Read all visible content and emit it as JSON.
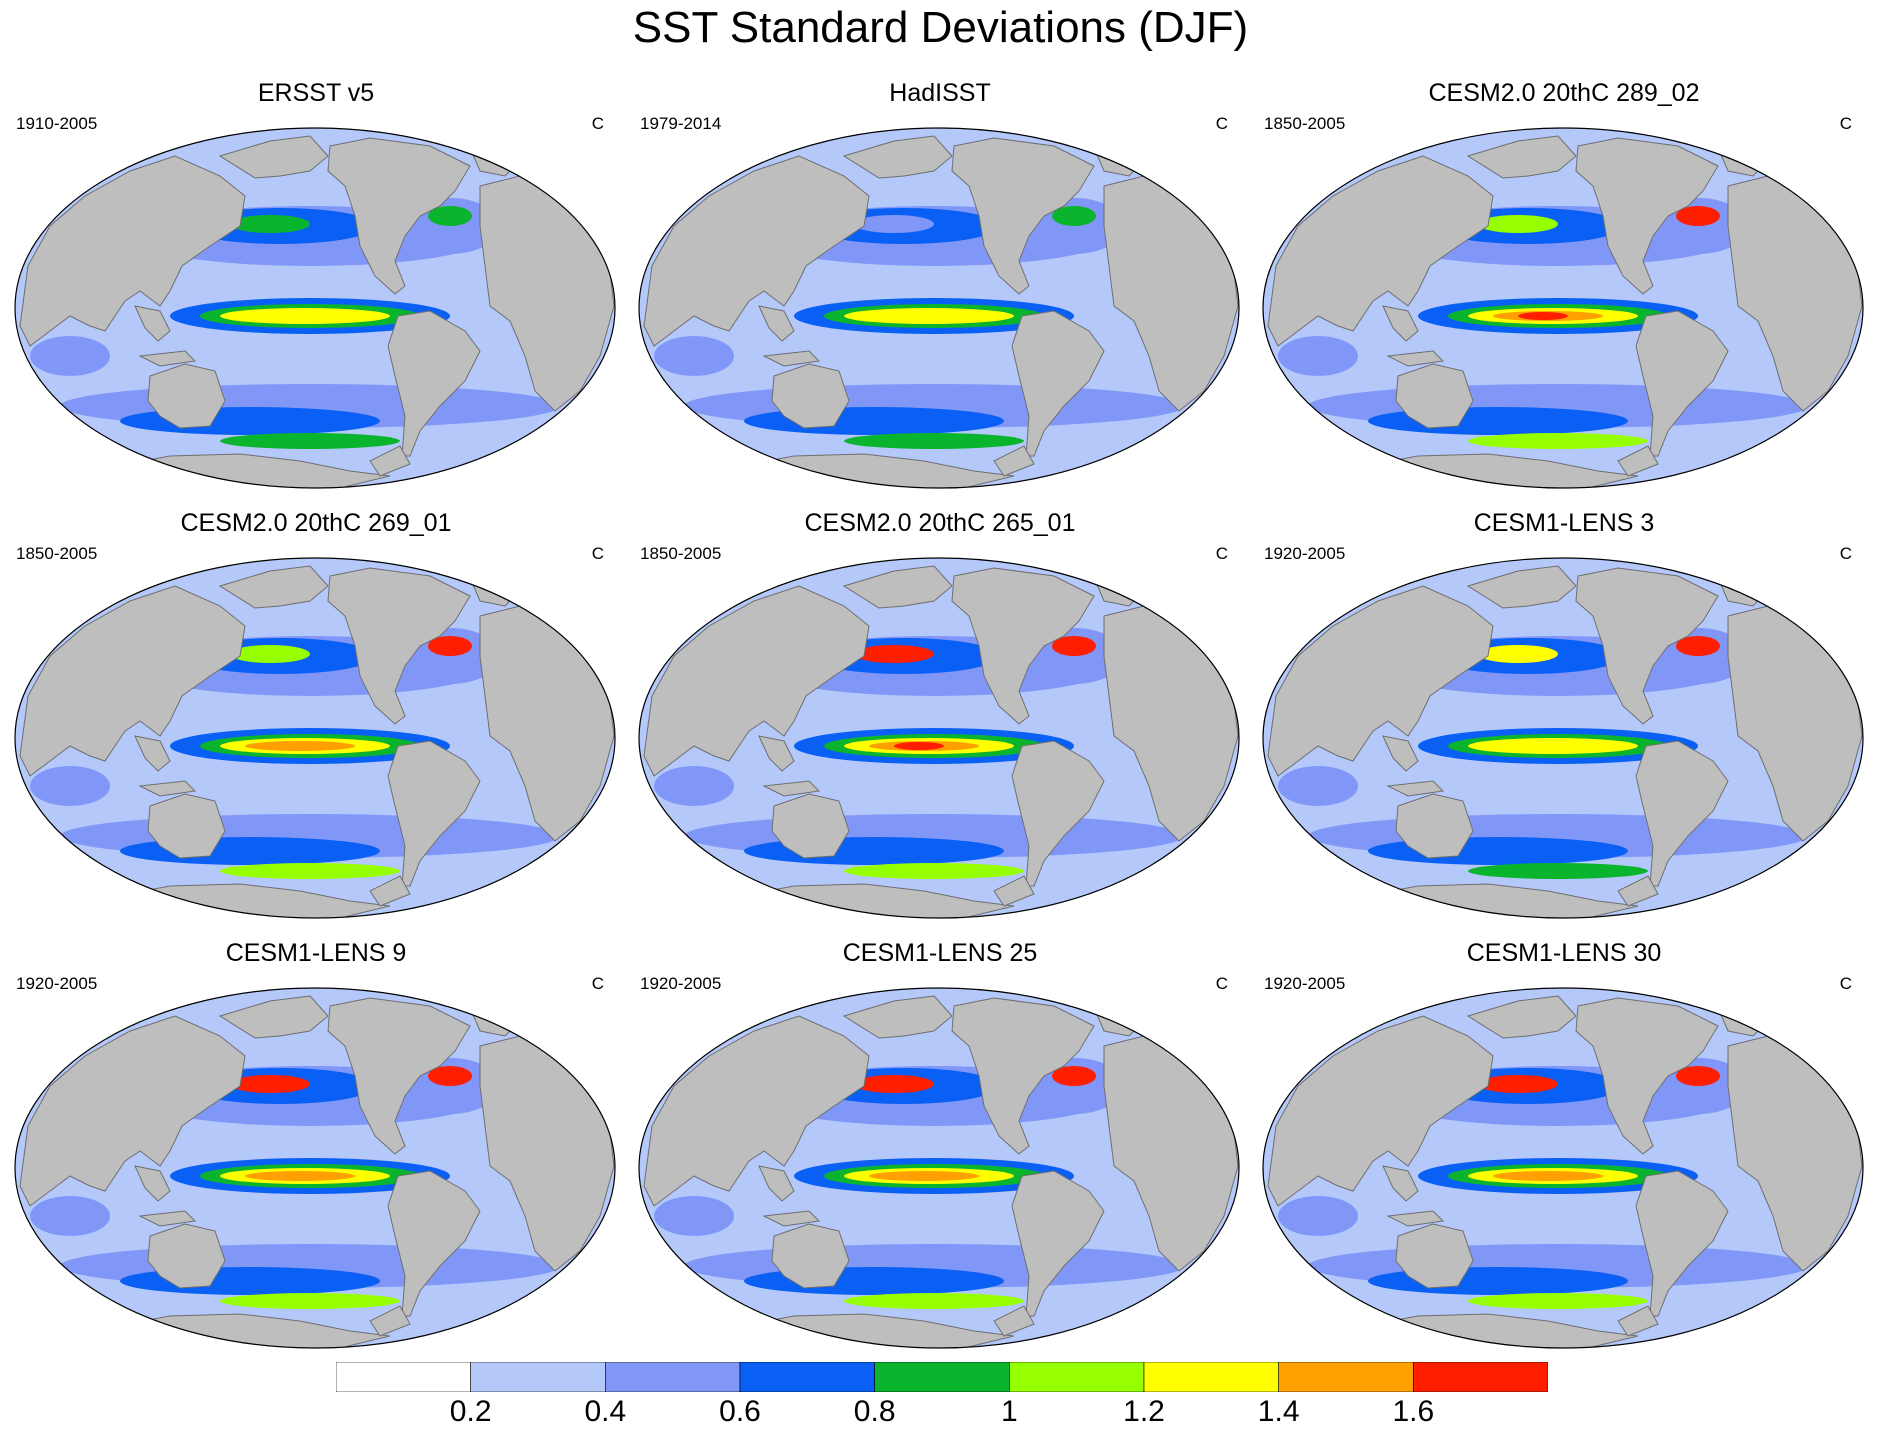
{
  "title": "SST Standard Deviations (DJF)",
  "panels": [
    {
      "title": "ERSST v5",
      "period": "1910-2005",
      "unit": "C",
      "enso_peak": 1.2,
      "nino_strength": 0.85,
      "kuroshio": 0.8,
      "gulfstream": 0.8
    },
    {
      "title": "HadISST",
      "period": "1979-2014",
      "unit": "C",
      "enso_peak": 1.2,
      "nino_strength": 0.8,
      "kuroshio": 0.6,
      "gulfstream": 0.8
    },
    {
      "title": "CESM2.0 20thC 289_02",
      "period": "1850-2005",
      "unit": "C",
      "enso_peak": 1.6,
      "nino_strength": 1.0,
      "kuroshio": 1.2,
      "gulfstream": 1.6
    },
    {
      "title": "CESM2.0 20thC 269_01",
      "period": "1850-2005",
      "unit": "C",
      "enso_peak": 1.4,
      "nino_strength": 1.0,
      "kuroshio": 1.2,
      "gulfstream": 1.6
    },
    {
      "title": "CESM2.0 20thC 265_01",
      "period": "1850-2005",
      "unit": "C",
      "enso_peak": 1.6,
      "nino_strength": 1.0,
      "kuroshio": 1.6,
      "gulfstream": 1.6
    },
    {
      "title": "CESM1-LENS 3",
      "period": "1920-2005",
      "unit": "C",
      "enso_peak": 1.2,
      "nino_strength": 0.9,
      "kuroshio": 1.4,
      "gulfstream": 1.6
    },
    {
      "title": "CESM1-LENS 9",
      "period": "1920-2005",
      "unit": "C",
      "enso_peak": 1.4,
      "nino_strength": 1.0,
      "kuroshio": 1.6,
      "gulfstream": 1.6
    },
    {
      "title": "CESM1-LENS 25",
      "period": "1920-2005",
      "unit": "C",
      "enso_peak": 1.4,
      "nino_strength": 1.0,
      "kuroshio": 1.6,
      "gulfstream": 1.6
    },
    {
      "title": "CESM1-LENS 30",
      "period": "1920-2005",
      "unit": "C",
      "enso_peak": 1.4,
      "nino_strength": 1.0,
      "kuroshio": 1.6,
      "gulfstream": 1.6
    }
  ],
  "colorbar": {
    "levels": [
      "0.2",
      "0.4",
      "0.6",
      "0.8",
      "1",
      "1.2",
      "1.4",
      "1.6"
    ],
    "colors": [
      "#ffffff",
      "#b4c8fa",
      "#8197f7",
      "#0a5ff5",
      "#0ab42d",
      "#96ff00",
      "#ffff00",
      "#ffa000",
      "#ff1e00"
    ]
  },
  "land_color": "#bebebe"
}
